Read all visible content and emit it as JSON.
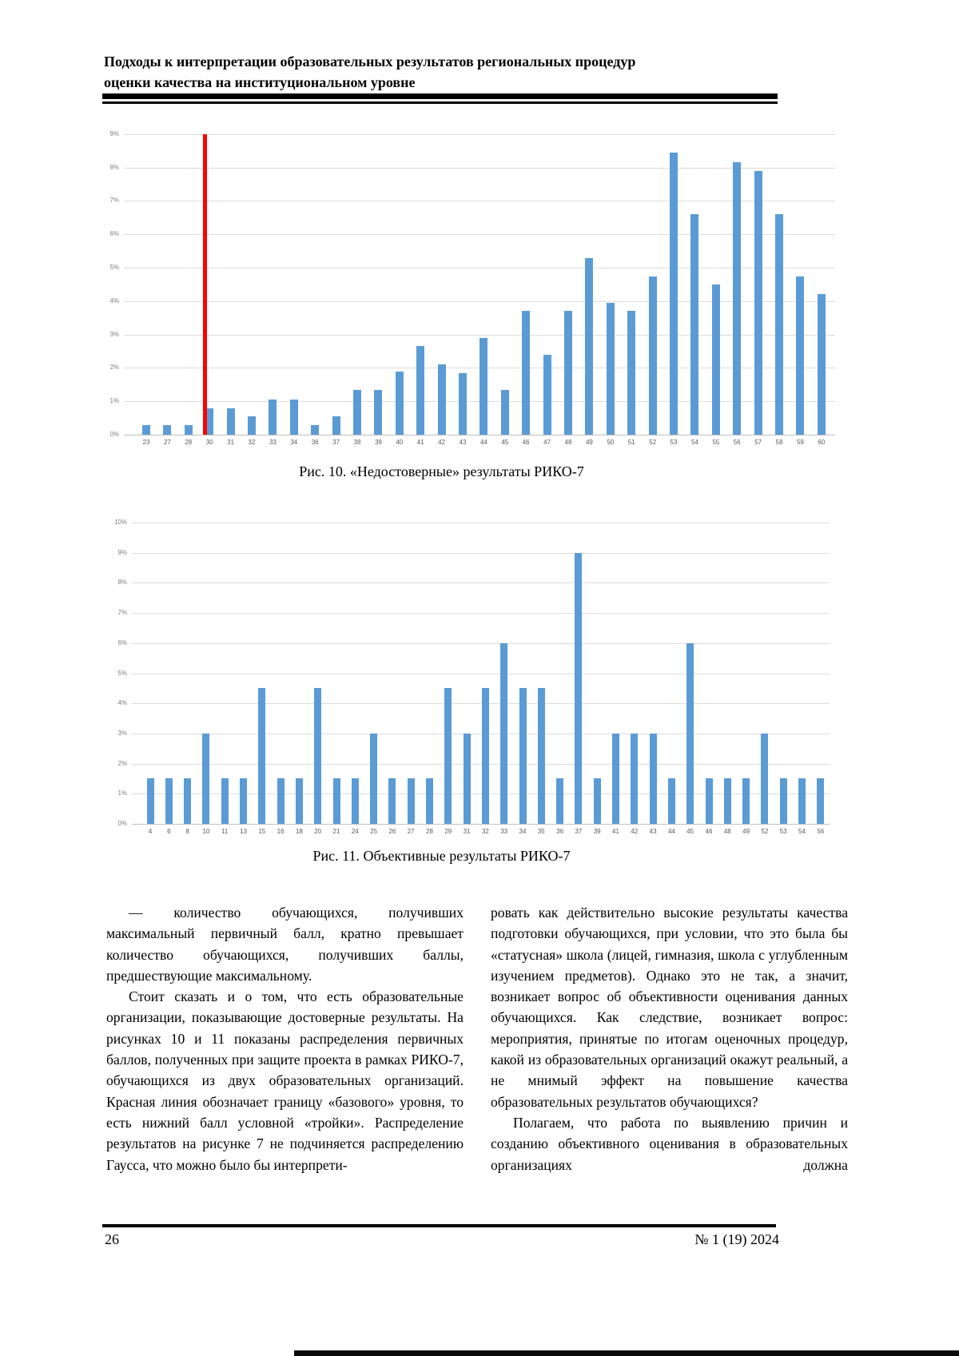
{
  "header": {
    "title_line1": "Подходы к интерпретации образовательных результатов региональных процедур",
    "title_line2": "оценки качества на институциональном уровне"
  },
  "figures": {
    "fig10_caption": "Рис. 10. «Недостоверные» результаты РИКО-7",
    "fig11_caption": "Рис. 11. Объективные результаты РИКО-7"
  },
  "chart_data": [
    {
      "type": "bar",
      "title": "«Недостоверные» результаты РИКО-7 (распределение первичных баллов)",
      "categories": [
        23,
        27,
        28,
        30,
        31,
        32,
        33,
        34,
        36,
        37,
        38,
        39,
        40,
        41,
        42,
        43,
        44,
        45,
        46,
        47,
        48,
        49,
        50,
        51,
        52,
        53,
        54,
        55,
        56,
        57,
        58,
        59,
        60
      ],
      "values": [
        0.3,
        0.3,
        0.3,
        0.8,
        0.8,
        0.55,
        1.05,
        1.05,
        0.3,
        0.55,
        1.35,
        1.35,
        1.9,
        2.65,
        2.1,
        1.85,
        2.9,
        1.35,
        3.7,
        2.4,
        3.7,
        5.3,
        3.95,
        3.7,
        4.75,
        8.45,
        6.6,
        4.5,
        8.15,
        7.9,
        6.6,
        4.75,
        4.2
      ],
      "xlabel": "",
      "ylabel": "",
      "ylim": [
        0,
        9
      ],
      "ytick_labels": [
        "0%",
        "1%",
        "2%",
        "3%",
        "4%",
        "5%",
        "6%",
        "7%",
        "8%",
        "9%"
      ],
      "grid": true,
      "legend": false,
      "bar_color": "#5b9bd5",
      "red_line": {
        "color": "#fe0000",
        "between": [
          28,
          30
        ],
        "meaning": "граница «базового» уровня"
      }
    },
    {
      "type": "bar",
      "title": "Объективные результаты РИКО-7 (распределение первичных баллов)",
      "categories": [
        4,
        6,
        8,
        10,
        11,
        13,
        15,
        16,
        18,
        20,
        21,
        24,
        25,
        26,
        27,
        28,
        29,
        31,
        32,
        33,
        34,
        35,
        36,
        37,
        39,
        41,
        42,
        43,
        44,
        45,
        46,
        48,
        49,
        52,
        53,
        54,
        56
      ],
      "values": [
        1.5,
        1.5,
        1.5,
        3,
        1.5,
        1.5,
        4.5,
        1.5,
        1.5,
        4.5,
        1.5,
        1.5,
        3,
        1.5,
        1.5,
        1.5,
        4.5,
        3,
        4.5,
        6,
        4.5,
        4.5,
        1.5,
        9,
        1.5,
        3,
        3,
        3,
        1.5,
        6,
        1.5,
        1.5,
        1.5,
        3,
        1.5,
        1.5,
        1.5
      ],
      "xlabel": "",
      "ylabel": "",
      "ylim": [
        0,
        10
      ],
      "ytick_labels": [
        "0%",
        "1%",
        "2%",
        "3%",
        "4%",
        "5%",
        "6%",
        "7%",
        "8%",
        "9%",
        "10%"
      ],
      "grid": true,
      "legend": false,
      "bar_color": "#5b9bd5"
    }
  ],
  "body": {
    "left_column": [
      "— количество обучающихся, получивших максимальный первичный балл, кратно превышает количество обучающихся, получивших баллы, предшествующие максимальному.",
      "Стоит сказать и о том, что есть образовательные организации, показывающие достоверные результаты. На рисунках 10 и 11 показаны распределения первичных баллов, полученных при защите проекта в рамках РИКО-7, обучающихся из двух образовательных организаций. Красная линия обозначает границу «базового» уровня, то есть нижний балл условной «тройки». Распределение результатов на рисунке 7 не подчиняется распределению Гаусса, что можно было бы интерпрети-"
    ],
    "right_column": [
      "ровать как действительно высокие результаты качества подготовки обучающихся, при условии, что это была бы «статусная» школа (лицей, гимназия, школа с углубленным изучением предметов). Однако это не так, а значит, возникает вопрос об объективности оценивания данных обучающихся. Как следствие, возникает вопрос: мероприятия, принятые по итогам оценочных процедур, какой из образовательных организаций окажут реальный, а не мнимый эффект на повышение качества образовательных результатов обучающихся?",
      "Полагаем, что работа по выявлению причин и созданию объективного оценивания в образовательных организациях должна"
    ]
  },
  "footer": {
    "page_number": "26",
    "issue": "№ 1 (19) 2024"
  }
}
